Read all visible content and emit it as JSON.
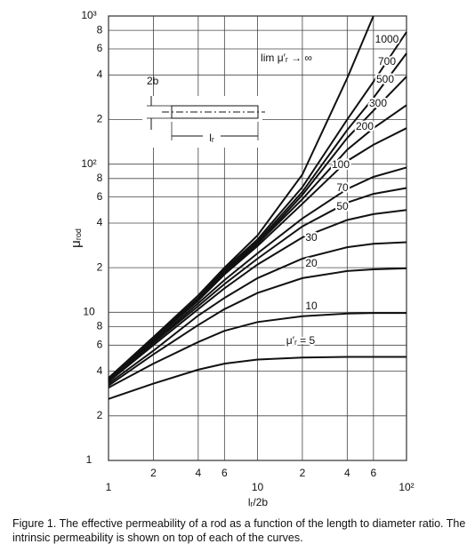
{
  "chart_data": {
    "type": "line",
    "log_x": true,
    "log_y": true,
    "grid": true,
    "y_label": {
      "symbol": "μ",
      "subscript": "rod"
    },
    "x_label": "lᵣ/2b",
    "inset": {
      "diameter": "2b",
      "length": "lᵣ"
    },
    "caption": "Figure 1. The effective permeability of a rod as a function of the length to diameter ratio. The intrinsic permeability is shown on top of each of the curves.",
    "xlim": [
      1,
      100
    ],
    "ylim": [
      1,
      1000
    ],
    "xticks": [
      1,
      2,
      4,
      6,
      10,
      {
        "value": 20,
        "label": "2"
      },
      {
        "value": 40,
        "label": "4"
      },
      {
        "value": 60,
        "label": "6"
      },
      {
        "value": 100,
        "label": "10²"
      }
    ],
    "yticks": [
      1,
      2,
      4,
      6,
      8,
      10,
      {
        "value": 20,
        "label": "2"
      },
      {
        "value": 40,
        "label": "4"
      },
      {
        "value": 60,
        "label": "6"
      },
      {
        "value": 80,
        "label": "8"
      },
      {
        "value": 100,
        "label": "10²"
      },
      {
        "value": 200,
        "label": "2"
      },
      {
        "value": 400,
        "label": "4"
      },
      {
        "value": 600,
        "label": "6"
      },
      {
        "value": 800,
        "label": "8"
      },
      {
        "value": 1000,
        "label": "10³"
      }
    ],
    "x": [
      1,
      2,
      4,
      6,
      10,
      20,
      40,
      60,
      100
    ],
    "series": [
      {
        "name": "lim μ′ᵣ → ∞",
        "color": "#111111",
        "values": [
          3.6,
          6.8,
          13,
          20,
          33,
          85,
          380,
          1000,
          null
        ]
      },
      {
        "name": "1000",
        "color": "#111111",
        "values": [
          3.6,
          6.7,
          12.5,
          19.5,
          31,
          70,
          200,
          360,
          780
        ]
      },
      {
        "name": "700",
        "color": "#111111",
        "values": [
          3.6,
          6.6,
          12.5,
          19,
          30,
          65,
          170,
          280,
          560
        ]
      },
      {
        "name": "500",
        "color": "#111111",
        "values": [
          3.5,
          6.6,
          12.3,
          18.5,
          29,
          62,
          150,
          230,
          390
        ]
      },
      {
        "name": "300",
        "color": "#111111",
        "values": [
          3.5,
          6.5,
          12,
          18,
          29,
          58,
          125,
          175,
          250
        ]
      },
      {
        "name": "200",
        "color": "#111111",
        "values": [
          3.5,
          6.5,
          12,
          18,
          28,
          54,
          105,
          135,
          175
        ]
      },
      {
        "name": "100",
        "color": "#111111",
        "values": [
          3.5,
          6.3,
          11.5,
          16.5,
          25,
          43,
          68,
          82,
          95
        ]
      },
      {
        "name": "70",
        "color": "#111111",
        "values": [
          3.4,
          6.2,
          11,
          15.5,
          23,
          38,
          55,
          63,
          69
        ]
      },
      {
        "name": "50",
        "color": "#111111",
        "values": [
          3.4,
          6,
          10.5,
          14.5,
          21,
          32,
          42,
          46,
          49
        ]
      },
      {
        "name": "30",
        "color": "#111111",
        "values": [
          3.3,
          5.5,
          9.5,
          12.5,
          17,
          23,
          27.5,
          29,
          29.7
        ]
      },
      {
        "name": "20",
        "color": "#111111",
        "values": [
          3.2,
          5.2,
          8.2,
          10.5,
          13.5,
          17,
          19,
          19.5,
          19.8
        ]
      },
      {
        "name": "10",
        "color": "#111111",
        "values": [
          3.1,
          4.5,
          6.3,
          7.5,
          8.6,
          9.4,
          9.8,
          9.9,
          9.9
        ]
      },
      {
        "name": "μ′ᵣ = 5",
        "color": "#111111",
        "values": [
          2.6,
          3.3,
          4.1,
          4.5,
          4.8,
          4.95,
          5,
          5,
          5
        ]
      }
    ]
  }
}
